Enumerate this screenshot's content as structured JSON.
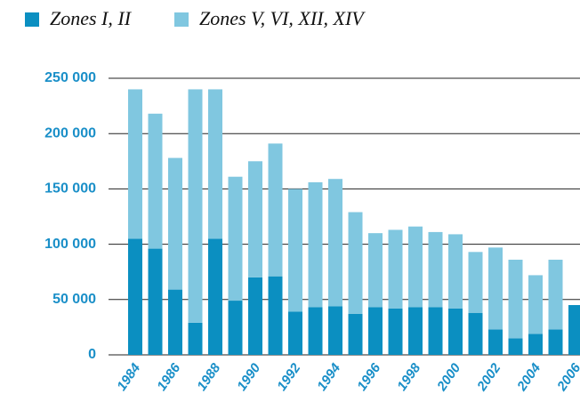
{
  "chart_data": {
    "type": "stacked_bar",
    "categories": [
      "1984",
      null,
      "1986",
      null,
      "1988",
      null,
      "1990",
      null,
      "1992",
      null,
      "1994",
      null,
      "1996",
      null,
      "1998",
      null,
      "2000",
      null,
      "2002",
      null,
      "2004",
      null,
      "2006"
    ],
    "series": [
      {
        "name": "Zones I, II",
        "color": "#0b8fc1",
        "values": [
          105000,
          96000,
          59000,
          29000,
          105000,
          49000,
          70000,
          71000,
          39000,
          43000,
          44000,
          37000,
          43000,
          42000,
          43000,
          43000,
          42000,
          38000,
          23000,
          15000,
          19000,
          23000,
          45000
        ]
      },
      {
        "name": "Zones V, VI, XII, XIV",
        "color": "#80c7e0",
        "values": [
          135000,
          122000,
          119000,
          211000,
          135000,
          112000,
          105000,
          120000,
          111000,
          113000,
          115000,
          92000,
          67000,
          71000,
          73000,
          68000,
          67000,
          55000,
          74000,
          71000,
          53000,
          63000,
          null
        ]
      }
    ],
    "ylim": [
      0,
      250000
    ],
    "yticks": [
      0,
      {
        "value": 50000,
        "label": "50 000"
      },
      {
        "value": 100000,
        "label": "100 000"
      },
      {
        "value": 150000,
        "label": "150 000"
      },
      {
        "value": 200000,
        "label": "200 000"
      },
      {
        "value": 250000,
        "label": "250 000"
      }
    ],
    "grid": true,
    "legend": "top"
  }
}
